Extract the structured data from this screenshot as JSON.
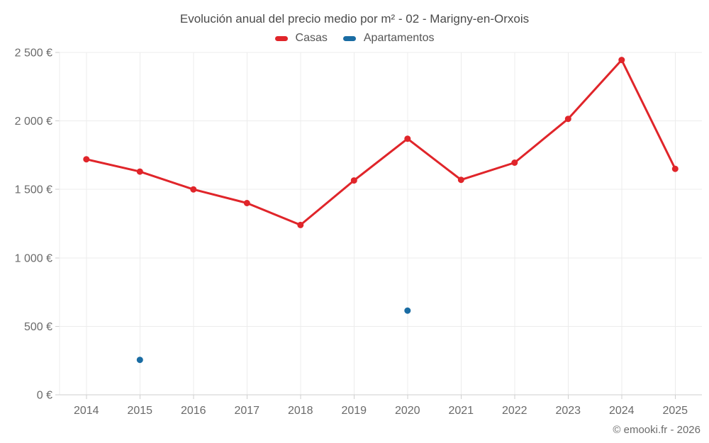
{
  "chart_data": {
    "type": "line",
    "title": "Evolución anual del precio medio por m² - 02 - Marigny-en-Orxois",
    "footer": "© emooki.fr - 2026",
    "categories": [
      "2014",
      "2015",
      "2016",
      "2017",
      "2018",
      "2019",
      "2020",
      "2021",
      "2022",
      "2023",
      "2024",
      "2025"
    ],
    "series": [
      {
        "name": "Casas",
        "color": "#e0252a",
        "style": "line-with-points",
        "values": [
          1720,
          1630,
          1500,
          1400,
          1240,
          1565,
          1870,
          1570,
          1695,
          2015,
          2445,
          1650
        ]
      },
      {
        "name": "Apartamentos",
        "color": "#1a6ca3",
        "style": "points-only",
        "values": [
          null,
          255,
          null,
          null,
          null,
          null,
          615,
          null,
          null,
          null,
          null,
          null
        ]
      }
    ],
    "y_axis": {
      "min": 0,
      "max": 2500,
      "tick_step": 500,
      "tick_labels": [
        "0 €",
        "500 €",
        "1 000 €",
        "1 500 €",
        "2 000 €",
        "2 500 €"
      ],
      "unit": "€"
    },
    "x_axis": {
      "label": ""
    },
    "layout": {
      "grid": "on",
      "legend_position": "top-center"
    },
    "colors": {
      "grid": "#ececec",
      "axis": "#cfcfcf",
      "tick_text": "#6a6a6a",
      "title_text": "#4b4b4b",
      "legend_text": "#555555",
      "background": "#ffffff"
    }
  }
}
